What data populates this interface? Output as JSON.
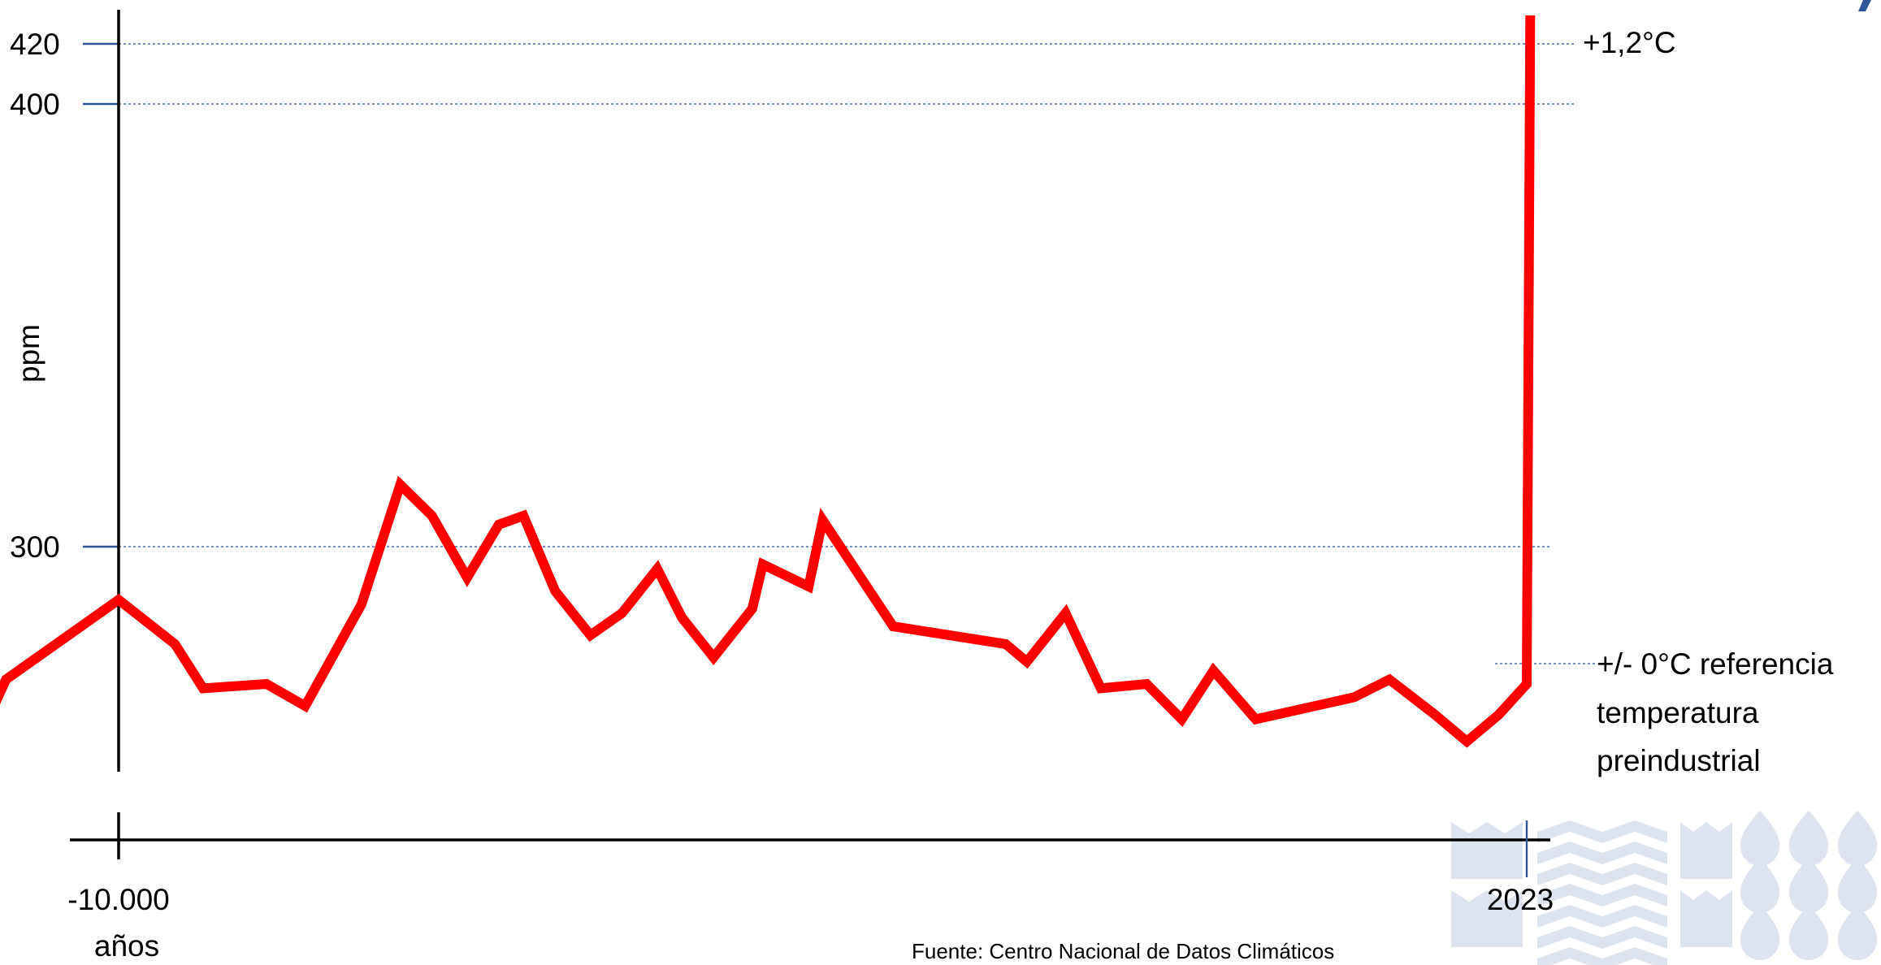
{
  "colors": {
    "series": "#ff0000",
    "axis": "#000000",
    "gridline": "#4a6fa5",
    "tick": "#2f5597",
    "watermark": "#dde4ef",
    "corner_accent": "#2f5597"
  },
  "chart_data": {
    "type": "line",
    "ylabel": "ppm",
    "y_ticks": [
      {
        "value": 420,
        "label": "420"
      },
      {
        "value": 400,
        "label": "400"
      },
      {
        "value": 300,
        "label": "300"
      }
    ],
    "x_ticks": [
      {
        "label": "-10.000"
      },
      {
        "label": "años"
      },
      {
        "label": "2023"
      }
    ],
    "annotations": {
      "top_right": "+1,2°C",
      "reference_lines": [
        "+/- 0°C referencia",
        "temperatura",
        "preindustrial"
      ],
      "source": "Fuente: Centro Nacional de Datos Climáticos"
    },
    "grid": "dotted horizontal at 420, 400, 300 ppm and at the reference level",
    "series": [
      {
        "values": [
          [
            -12000,
            256
          ],
          [
            -11600,
            270
          ],
          [
            -10000,
            288
          ],
          [
            -9200,
            278
          ],
          [
            -8800,
            268
          ],
          [
            -7900,
            269
          ],
          [
            -7350,
            264
          ],
          [
            -6550,
            287
          ],
          [
            -6000,
            314
          ],
          [
            -5550,
            307
          ],
          [
            -5050,
            293
          ],
          [
            -4600,
            305
          ],
          [
            -4250,
            307
          ],
          [
            -3800,
            290
          ],
          [
            -3300,
            280
          ],
          [
            -2850,
            285
          ],
          [
            -2350,
            295
          ],
          [
            -2000,
            284
          ],
          [
            -1550,
            275
          ],
          [
            -1000,
            286
          ],
          [
            -850,
            296
          ],
          [
            -200,
            291
          ],
          [
            0,
            306
          ],
          [
            1000,
            282
          ],
          [
            2600,
            278
          ],
          [
            2900,
            274
          ],
          [
            3450,
            285
          ],
          [
            3950,
            268
          ],
          [
            4600,
            269
          ],
          [
            5100,
            261
          ],
          [
            5550,
            272
          ],
          [
            6150,
            261
          ],
          [
            7550,
            266
          ],
          [
            8050,
            270
          ],
          [
            8700,
            262
          ],
          [
            9150,
            256
          ],
          [
            9600,
            262
          ],
          [
            10000,
            269
          ],
          [
            10050,
            420
          ]
        ]
      }
    ]
  }
}
